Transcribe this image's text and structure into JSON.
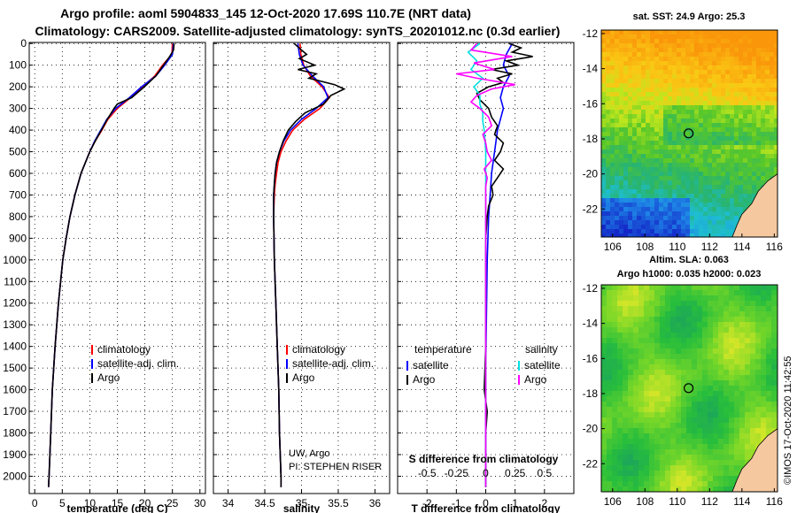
{
  "header": {
    "line1": "Argo profile: aoml 5904833_145 12-Oct-2020 17.69S 110.7E (NRT data)",
    "line2": "Climatology: CARS2009. Satellite-adjusted climatology: synTS_20201012.nc (0.3d earlier)"
  },
  "colors": {
    "climatology": "#ff0000",
    "satellite": "#0000ff",
    "argo": "#000000",
    "s_satellite": "#00e0e0",
    "s_argo": "#ff00ff",
    "land": "#f5c8a0"
  },
  "chart_data": [
    {
      "type": "line",
      "name": "temperature-profile",
      "xlabel": "temperature (deg C)",
      "xlim": [
        -1,
        31
      ],
      "ylim": [
        2080,
        -5
      ],
      "xticks": [
        "0",
        "5",
        "10",
        "15",
        "20",
        "25",
        "30"
      ],
      "xtick_values": [
        0,
        5,
        10,
        15,
        20,
        25,
        30
      ],
      "yticks": [
        "0",
        "100",
        "200",
        "300",
        "400",
        "500",
        "600",
        "700",
        "800",
        "900",
        "1000",
        "1100",
        "1200",
        "1300",
        "1400",
        "1500",
        "1600",
        "1700",
        "1800",
        "1900",
        "2000"
      ],
      "ytick_values": [
        0,
        100,
        200,
        300,
        400,
        500,
        600,
        700,
        800,
        900,
        1000,
        1100,
        1200,
        1300,
        1400,
        1500,
        1600,
        1700,
        1800,
        1900,
        2000
      ],
      "legend": [
        "climatology",
        "satellite-adj. clim.",
        "Argo"
      ],
      "series": [
        {
          "name": "climatology",
          "color": "#ff0000",
          "depth": [
            0,
            50,
            100,
            150,
            200,
            250,
            300,
            350,
            400,
            450,
            500,
            600,
            700,
            800,
            900,
            1000,
            1200,
            1400,
            1600,
            1800,
            2000,
            2050
          ],
          "values": [
            25.0,
            24.9,
            23.2,
            21.8,
            19.6,
            17.4,
            15.0,
            13.3,
            12.2,
            11.0,
            10.0,
            8.4,
            7.3,
            6.4,
            5.7,
            5.1,
            4.3,
            3.7,
            3.2,
            2.9,
            2.6,
            2.5
          ]
        },
        {
          "name": "satellite-adj. clim.",
          "color": "#0000ff",
          "depth": [
            0,
            50,
            100,
            150,
            200,
            250,
            300,
            350,
            400,
            450,
            500,
            600,
            700,
            800,
            900,
            1000,
            1200,
            1400,
            1600,
            1800,
            2000,
            2050
          ],
          "values": [
            25.2,
            25.0,
            23.6,
            22.0,
            19.4,
            17.2,
            14.7,
            13.1,
            12.0,
            10.9,
            10.0,
            8.4,
            7.3,
            6.4,
            5.7,
            5.1,
            4.3,
            3.7,
            3.2,
            2.9,
            2.6,
            2.5
          ]
        },
        {
          "name": "Argo",
          "color": "#000000",
          "depth": [
            0,
            30,
            60,
            100,
            150,
            200,
            250,
            280,
            300,
            350,
            400,
            450,
            500,
            600,
            700,
            800,
            900,
            1000,
            1200,
            1400,
            1600,
            1800,
            2000,
            2050
          ],
          "values": [
            25.3,
            25.2,
            24.5,
            23.4,
            22.0,
            19.9,
            17.6,
            15.0,
            14.4,
            13.2,
            12.1,
            11.0,
            10.0,
            8.4,
            7.3,
            6.4,
            5.7,
            5.1,
            4.3,
            3.7,
            3.2,
            2.9,
            2.6,
            2.5
          ]
        }
      ]
    },
    {
      "type": "line",
      "name": "salinity-profile",
      "xlabel": "salinity",
      "xlim": [
        33.8,
        36.2
      ],
      "ylim": [
        2080,
        -5
      ],
      "xticks": [
        "34",
        "34.5",
        "35",
        "35.5",
        "36"
      ],
      "xtick_values": [
        34,
        34.5,
        35,
        35.5,
        36
      ],
      "legend": [
        "climatology",
        "satellite-adj. clim.",
        "Argo"
      ],
      "annotation": [
        "UW, Argo",
        "PI: STEPHEN RISER"
      ],
      "series": [
        {
          "name": "climatology",
          "color": "#ff0000",
          "depth": [
            0,
            50,
            100,
            150,
            200,
            250,
            300,
            350,
            400,
            450,
            500,
            550,
            600,
            650,
            700,
            800,
            1000,
            1200,
            1400,
            1600,
            1800,
            2000,
            2050
          ],
          "values": [
            34.98,
            34.99,
            35.03,
            35.12,
            35.28,
            35.38,
            35.25,
            35.04,
            34.88,
            34.79,
            34.72,
            34.68,
            34.66,
            34.64,
            34.63,
            34.62,
            34.63,
            34.65,
            34.67,
            34.69,
            34.7,
            34.72,
            34.72
          ]
        },
        {
          "name": "satellite-adj. clim.",
          "color": "#0000ff",
          "depth": [
            0,
            50,
            100,
            150,
            200,
            250,
            300,
            350,
            400,
            450,
            500,
            550,
            600,
            650,
            700,
            800,
            1000,
            1200,
            1400,
            1600,
            1800,
            2000,
            2050
          ],
          "values": [
            34.95,
            34.97,
            35.02,
            35.15,
            35.3,
            35.36,
            35.2,
            35.0,
            34.85,
            34.76,
            34.7,
            34.66,
            34.64,
            34.63,
            34.62,
            34.62,
            34.63,
            34.65,
            34.67,
            34.69,
            34.7,
            34.72,
            34.72
          ]
        },
        {
          "name": "Argo",
          "color": "#000000",
          "depth": [
            0,
            30,
            50,
            70,
            100,
            120,
            140,
            160,
            190,
            210,
            240,
            280,
            320,
            360,
            400,
            450,
            500,
            550,
            600,
            650,
            700,
            800,
            1000,
            1200,
            1400,
            1600,
            1800,
            2000,
            2050
          ],
          "values": [
            34.9,
            35.0,
            35.07,
            34.97,
            35.18,
            34.95,
            35.2,
            35.1,
            35.45,
            35.58,
            35.4,
            35.3,
            35.05,
            34.92,
            34.82,
            34.75,
            34.7,
            34.66,
            34.64,
            34.63,
            34.62,
            34.62,
            34.63,
            34.65,
            34.67,
            34.69,
            34.7,
            34.72,
            34.72
          ]
        }
      ]
    },
    {
      "type": "line",
      "name": "difference-profile",
      "xlabel": "T difference from climatology",
      "s_axis_label": "S difference from climatology",
      "xlim": [
        -3,
        3
      ],
      "ylim": [
        2080,
        -5
      ],
      "xticks": [
        "-2",
        "-1",
        "0",
        "1",
        "2"
      ],
      "xtick_values": [
        -2,
        -1,
        0,
        1,
        2
      ],
      "s_ticks": [
        "-0.5",
        "-0.25",
        "0",
        "0.25",
        "0.5"
      ],
      "s_tick_values": [
        -2,
        -1,
        0,
        1,
        2
      ],
      "legend_temperature_title": "temperature",
      "legend_salinity_title": "salinity",
      "legend": [
        "satellite",
        "Argo",
        "satellite",
        "Argo"
      ],
      "series": [
        {
          "name": "T satellite",
          "color": "#0000ff",
          "depth": [
            0,
            50,
            100,
            150,
            200,
            250,
            300,
            350,
            400,
            500,
            600,
            700,
            800,
            1000,
            1500,
            2050
          ],
          "values": [
            0.9,
            0.7,
            0.6,
            0.8,
            0.6,
            0.5,
            0.6,
            0.5,
            0.4,
            0.3,
            0.2,
            0.15,
            0.1,
            0.05,
            0.0,
            0.0
          ]
        },
        {
          "name": "T Argo",
          "color": "#000000",
          "depth": [
            0,
            20,
            40,
            60,
            80,
            100,
            120,
            140,
            160,
            180,
            200,
            230,
            260,
            300,
            340,
            380,
            420,
            460,
            500,
            540,
            580,
            620,
            660,
            700,
            750,
            800,
            900,
            1000,
            1200,
            1400,
            1600,
            1700,
            1800,
            2000,
            2050
          ],
          "values": [
            0.8,
            1.2,
            0.9,
            1.6,
            0.7,
            1.1,
            0.2,
            0.9,
            0.4,
            0.6,
            0.1,
            -0.3,
            -0.2,
            0.1,
            0.2,
            0.4,
            0.3,
            0.6,
            0.5,
            0.3,
            0.6,
            0.4,
            0.2,
            0.25,
            0.1,
            0.05,
            0.0,
            0.0,
            0.0,
            0.0,
            -0.05,
            0.05,
            0.0,
            0.0,
            0.0
          ]
        },
        {
          "name": "S satellite",
          "color": "#00e0e0",
          "depth": [
            0,
            40,
            80,
            120,
            160,
            200,
            240,
            280,
            320,
            360,
            400,
            500,
            600,
            700,
            800,
            1000,
            1500,
            2050
          ],
          "values": [
            -0.2,
            -0.6,
            -0.3,
            -0.5,
            -0.1,
            -0.4,
            -0.2,
            -0.2,
            -0.1,
            -0.1,
            -0.05,
            0.0,
            0.0,
            0.0,
            0.0,
            0.0,
            0.0,
            0.0
          ]
        },
        {
          "name": "S Argo",
          "color": "#ff00ff",
          "depth": [
            0,
            30,
            60,
            90,
            120,
            140,
            160,
            190,
            210,
            240,
            270,
            300,
            340,
            380,
            420,
            460,
            500,
            540,
            580,
            620,
            660,
            700,
            800,
            1000,
            1400,
            1800,
            2050
          ],
          "values": [
            -0.3,
            -0.5,
            0.9,
            -0.4,
            0.3,
            -1.0,
            -0.3,
            1.0,
            0.2,
            -0.3,
            -0.5,
            -0.2,
            0.1,
            0.2,
            -0.1,
            0.0,
            0.05,
            0.2,
            -0.05,
            0.05,
            0.0,
            0.0,
            0.0,
            0.0,
            0.0,
            0.0,
            0.0
          ]
        }
      ]
    },
    {
      "type": "heatmap",
      "name": "sst-map",
      "title": "sat. SST: 24.9 Argo: 25.3",
      "xlim": [
        105.3,
        116.2
      ],
      "ylim": [
        -23.6,
        -11.8
      ],
      "xticks": [
        "106",
        "108",
        "110",
        "112",
        "114",
        "116"
      ],
      "xtick_values": [
        106,
        108,
        110,
        112,
        114,
        116
      ],
      "yticks": [
        "-12",
        "-14",
        "-16",
        "-18",
        "-20",
        "-22"
      ],
      "ytick_values": [
        -12,
        -14,
        -16,
        -18,
        -20,
        -22
      ],
      "marker": [
        110.7,
        -17.69
      ]
    },
    {
      "type": "heatmap",
      "name": "sla-map",
      "title_line1": "Altim. SLA: 0.063",
      "title_line2": "Argo h1000: 0.035 h2000: 0.023",
      "xlim": [
        105.3,
        116.2
      ],
      "ylim": [
        -23.6,
        -11.8
      ],
      "xticks": [
        "106",
        "108",
        "110",
        "112",
        "114",
        "116"
      ],
      "xtick_values": [
        106,
        108,
        110,
        112,
        114,
        116
      ],
      "yticks": [
        "-12",
        "-14",
        "-16",
        "-18",
        "-20",
        "-22"
      ],
      "ytick_values": [
        -12,
        -14,
        -16,
        -18,
        -20,
        -22
      ],
      "marker": [
        110.7,
        -17.69
      ]
    }
  ],
  "credit": "©IMOS 17-Oct-2020 11:42:55"
}
